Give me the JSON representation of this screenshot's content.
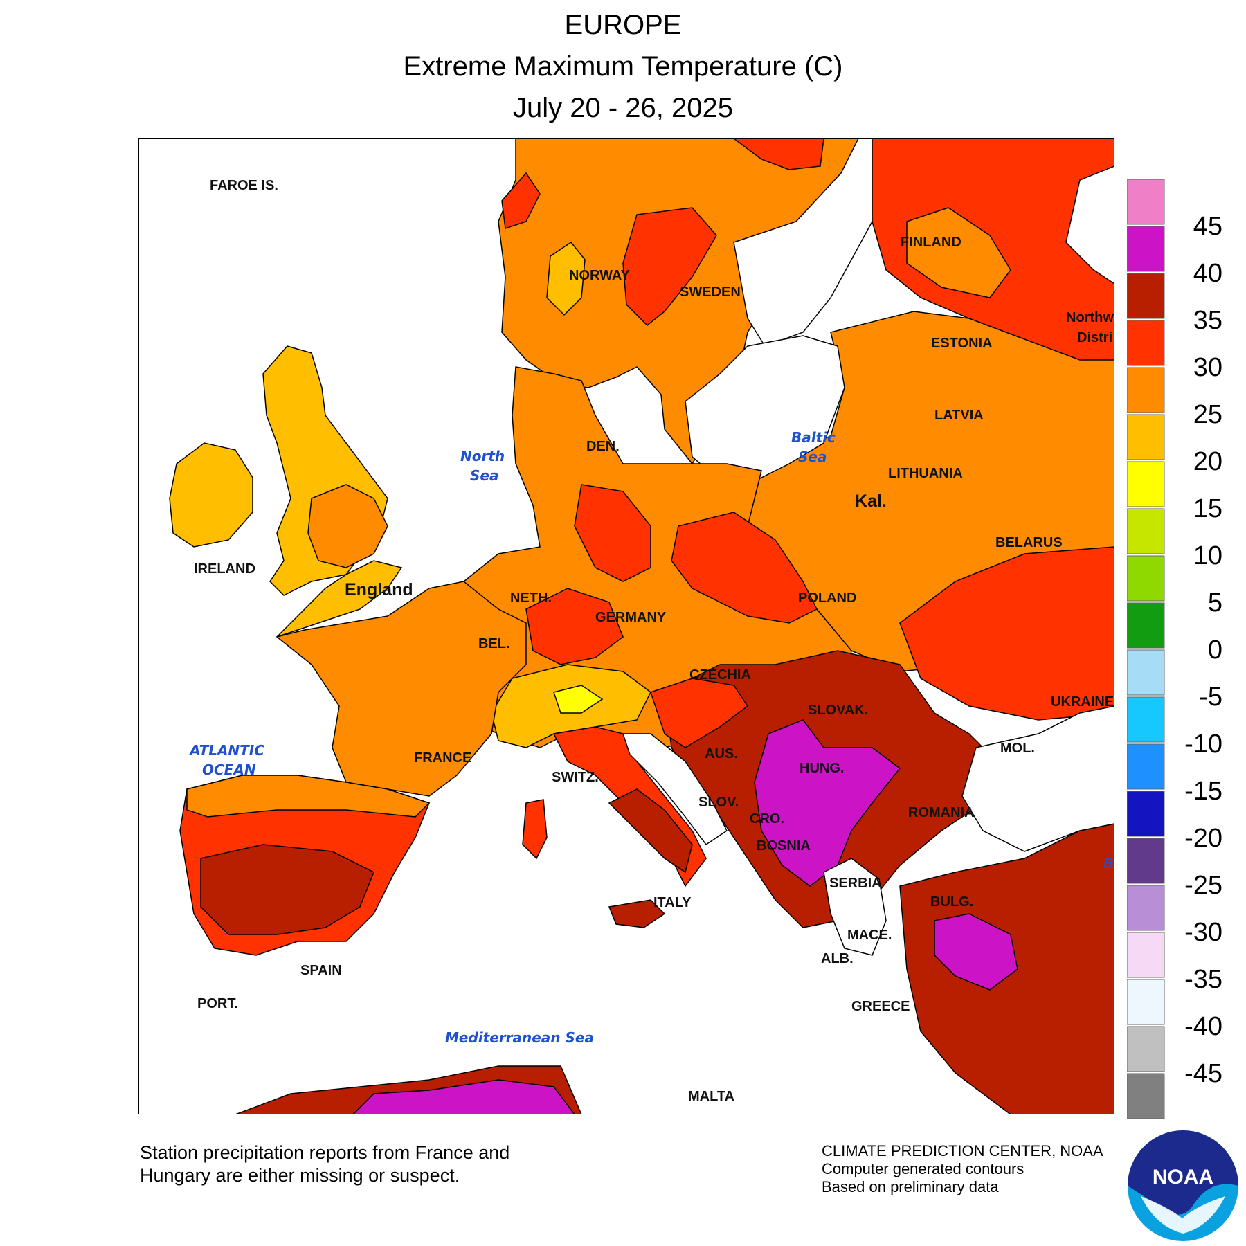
{
  "header": {
    "title": "EUROPE",
    "subtitle": "Extreme Maximum Temperature (C)",
    "period": "July 20 - 26, 2025"
  },
  "map": {
    "region": "Europe",
    "variable": "Extreme Maximum Temperature",
    "unit": "C",
    "country_labels": [
      "FAROE IS.",
      "NORWAY",
      "SWEDEN",
      "FINLAND",
      "ESTONIA",
      "LATVIA",
      "LITHUANIA",
      "Kal.",
      "BELARUS",
      "DEN.",
      "IRELAND",
      "England",
      "NETH.",
      "GERMANY",
      "POLAND",
      "BEL.",
      "CZECHIA",
      "SLOVAK.",
      "UKRAINE",
      "FRANCE",
      "SWITZ.",
      "AUS.",
      "HUNG.",
      "MOL.",
      "SLOV.",
      "CRO.",
      "ROMANIA",
      "BOSNIA",
      "SERBIA",
      "ITALY",
      "BULG.",
      "MACE.",
      "ALB.",
      "SPAIN",
      "PORT.",
      "GREECE",
      "MALTA"
    ],
    "partial_labels": [
      "Northw",
      "Distri",
      "B"
    ],
    "sea_labels": [
      "North",
      "Sea",
      "Baltic",
      "Sea",
      "ATLANTIC",
      "OCEAN",
      "Mediterranean Sea"
    ]
  },
  "legend": {
    "ticks": [
      "45",
      "40",
      "35",
      "30",
      "25",
      "20",
      "15",
      "10",
      "5",
      "0",
      "-5",
      "-10",
      "-15",
      "-20",
      "-25",
      "-30",
      "-35",
      "-40",
      "-45"
    ],
    "colors": [
      "#ef7fc6",
      "#cc14c6",
      "#b81f00",
      "#ff3200",
      "#ff8c00",
      "#ffbf00",
      "#ffff00",
      "#c6e600",
      "#8fd900",
      "#119c11",
      "#a6dcf5",
      "#17c8ff",
      "#1e90ff",
      "#1414c0",
      "#613a8c",
      "#b88fd6",
      "#f5d9f5",
      "#eef7fd",
      "#c0c0c0",
      "#808080"
    ]
  },
  "footer": {
    "note_line1": "Station precipitation reports from France and",
    "note_line2": "Hungary are either missing or suspect.",
    "credit_line1": "CLIMATE PREDICTION CENTER, NOAA",
    "credit_line2": "Computer generated contours",
    "credit_line3": "Based on preliminary data",
    "logo_text": "NOAA"
  }
}
